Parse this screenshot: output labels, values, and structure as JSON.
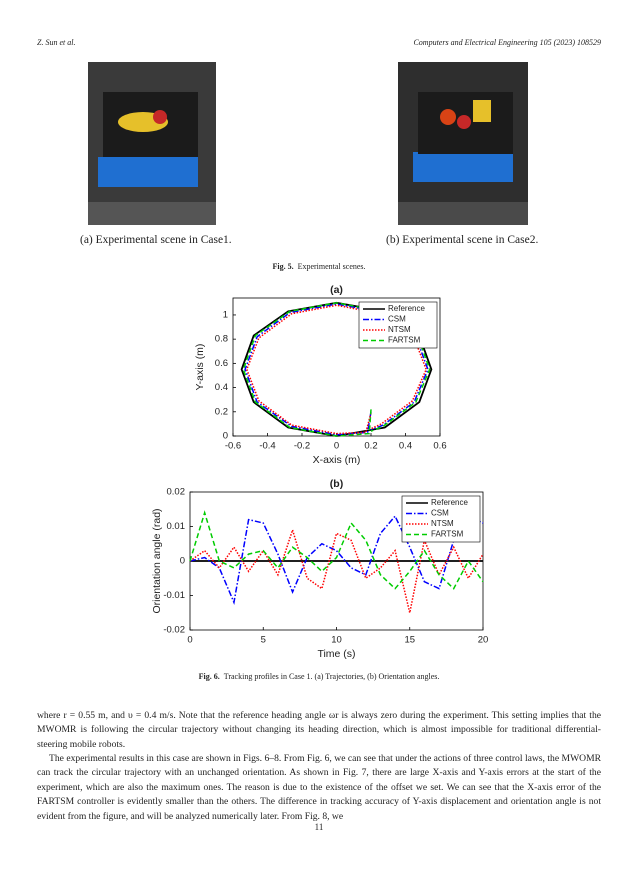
{
  "header": {
    "left": "Z. Sun et al.",
    "right": "Computers and Electrical Engineering 105 (2023) 108529"
  },
  "figure5": {
    "subcaptions": [
      "(a) Experimental scene in Case1.",
      "(b) Experimental scene in Case2."
    ],
    "caption": {
      "label": "Fig. 5.",
      "text": "Experimental scenes."
    }
  },
  "chart_data": [
    {
      "type": "line",
      "title": "(a)",
      "x_label": "X-axis (m)",
      "y_label": "Y-axis (m)",
      "xlim": [
        -0.6,
        0.6
      ],
      "ylim": [
        0,
        1.14
      ],
      "xticks": [
        -0.6,
        -0.4,
        -0.2,
        0,
        0.2,
        0.4,
        0.6
      ],
      "yticks": [
        0,
        0.2,
        0.4,
        0.6,
        0.8,
        1
      ],
      "grid": false,
      "legend": "top-right",
      "series": [
        {
          "name": "Reference",
          "color": "#000000",
          "dash": "solid",
          "x": [
            0,
            0.28,
            0.48,
            0.55,
            0.48,
            0.28,
            0,
            -0.28,
            -0.48,
            -0.55,
            -0.48,
            -0.28,
            0
          ],
          "values": [
            0,
            0.07,
            0.28,
            0.55,
            0.83,
            1.03,
            1.1,
            1.03,
            0.83,
            0.55,
            0.28,
            0.07,
            0
          ]
        },
        {
          "name": "CSM",
          "color": "#0000ff",
          "dash": "dashdot",
          "x": [
            0.2,
            0.18,
            0,
            -0.26,
            -0.46,
            -0.53,
            -0.46,
            -0.27,
            0,
            0.27,
            0.46,
            0.53,
            0.45,
            0.27,
            0.2
          ],
          "values": [
            0.2,
            0.03,
            0.01,
            0.08,
            0.28,
            0.55,
            0.82,
            1.02,
            1.09,
            1.02,
            0.82,
            0.55,
            0.28,
            0.09,
            0.05
          ]
        },
        {
          "name": "NTSM",
          "color": "#ff0000",
          "dash": "dotted",
          "x": [
            0.2,
            0.17,
            0,
            -0.26,
            -0.45,
            -0.52,
            -0.45,
            -0.26,
            0,
            0.26,
            0.45,
            0.52,
            0.44,
            0.26,
            0.2
          ],
          "values": [
            0.19,
            0.03,
            0.02,
            0.09,
            0.29,
            0.55,
            0.81,
            1.01,
            1.08,
            1.01,
            0.81,
            0.55,
            0.29,
            0.1,
            0.06
          ]
        },
        {
          "name": "FARTSM",
          "color": "#00cc00",
          "dash": "dashed",
          "x": [
            0.2,
            0.19,
            0,
            -0.27,
            -0.47,
            -0.54,
            -0.47,
            -0.27,
            0,
            0.27,
            0.47,
            0.54,
            0.46,
            0.27,
            0.2
          ],
          "values": [
            0.22,
            0.02,
            0,
            0.07,
            0.28,
            0.55,
            0.83,
            1.03,
            1.1,
            1.03,
            0.83,
            0.55,
            0.28,
            0.08,
            0.04
          ]
        }
      ]
    },
    {
      "type": "line",
      "title": "(b)",
      "x_label": "Time (s)",
      "y_label": "Orientation angle (rad)",
      "xlim": [
        0,
        20
      ],
      "ylim": [
        -0.02,
        0.02
      ],
      "xticks": [
        0,
        5,
        10,
        15,
        20
      ],
      "yticks": [
        -0.02,
        -0.01,
        0,
        0.01,
        0.02
      ],
      "grid": false,
      "legend": "top-right",
      "x": [
        0,
        1,
        2,
        3,
        4,
        5,
        6,
        7,
        8,
        9,
        10,
        11,
        12,
        13,
        14,
        15,
        16,
        17,
        18,
        19,
        20
      ],
      "series": [
        {
          "name": "Reference",
          "color": "#000000",
          "dash": "solid",
          "values": [
            0,
            0,
            0,
            0,
            0,
            0,
            0,
            0,
            0,
            0,
            0,
            0,
            0,
            0,
            0,
            0,
            0,
            0,
            0,
            0,
            0
          ]
        },
        {
          "name": "CSM",
          "color": "#0000ff",
          "dash": "dashdot",
          "values": [
            0,
            0.001,
            -0.002,
            -0.012,
            0.012,
            0.011,
            0.002,
            -0.009,
            0.001,
            0.005,
            0.003,
            -0.002,
            -0.004,
            0.008,
            0.013,
            0.004,
            -0.006,
            -0.008,
            0.006,
            0.013,
            0.011
          ]
        },
        {
          "name": "NTSM",
          "color": "#ff0000",
          "dash": "dotted",
          "values": [
            0,
            0.003,
            -0.002,
            0.004,
            -0.003,
            0.003,
            -0.004,
            0.009,
            -0.005,
            -0.008,
            0.008,
            0.006,
            -0.005,
            -0.002,
            0.003,
            -0.015,
            0.006,
            -0.004,
            0.004,
            -0.005,
            0.002
          ]
        },
        {
          "name": "FARTSM",
          "color": "#00cc00",
          "dash": "dashed",
          "values": [
            0,
            0.014,
            0,
            -0.002,
            0.002,
            0.003,
            -0.002,
            0.004,
            0.001,
            -0.003,
            0.001,
            0.011,
            0.006,
            -0.004,
            -0.008,
            -0.003,
            0.003,
            -0.004,
            -0.008,
            0,
            -0.006
          ]
        }
      ]
    }
  ],
  "figure6": {
    "caption": {
      "label": "Fig. 6.",
      "text": "Tracking profiles in Case 1. (a) Trajectories, (b) Orientation angles."
    }
  },
  "body": [
    "where r = 0.55 m, and υ = 0.4 m/s. Note that the reference heading angle ωr is always zero during the experiment. This setting implies that the MWOMR is following the circular trajectory without changing its heading direction, which is almost impossible for traditional differential-steering mobile robots.",
    "The experimental results in this case are shown in Figs. 6–8. From Fig. 6, we can see that under the actions of three control laws, the MWOMR can track the circular trajectory with an unchanged orientation. As shown in Fig. 7, there are large X-axis and Y-axis errors at the start of the experiment, which are also the maximum ones. The reason is due to the existence of the offset we set. We can see that the X-axis error of the FARTSM controller is evidently smaller than the others. The difference in tracking accuracy of Y-axis displacement and orientation angle is not evident from the figure, and will be analyzed numerically later. From Fig. 8, we"
  ],
  "page_number": "11"
}
